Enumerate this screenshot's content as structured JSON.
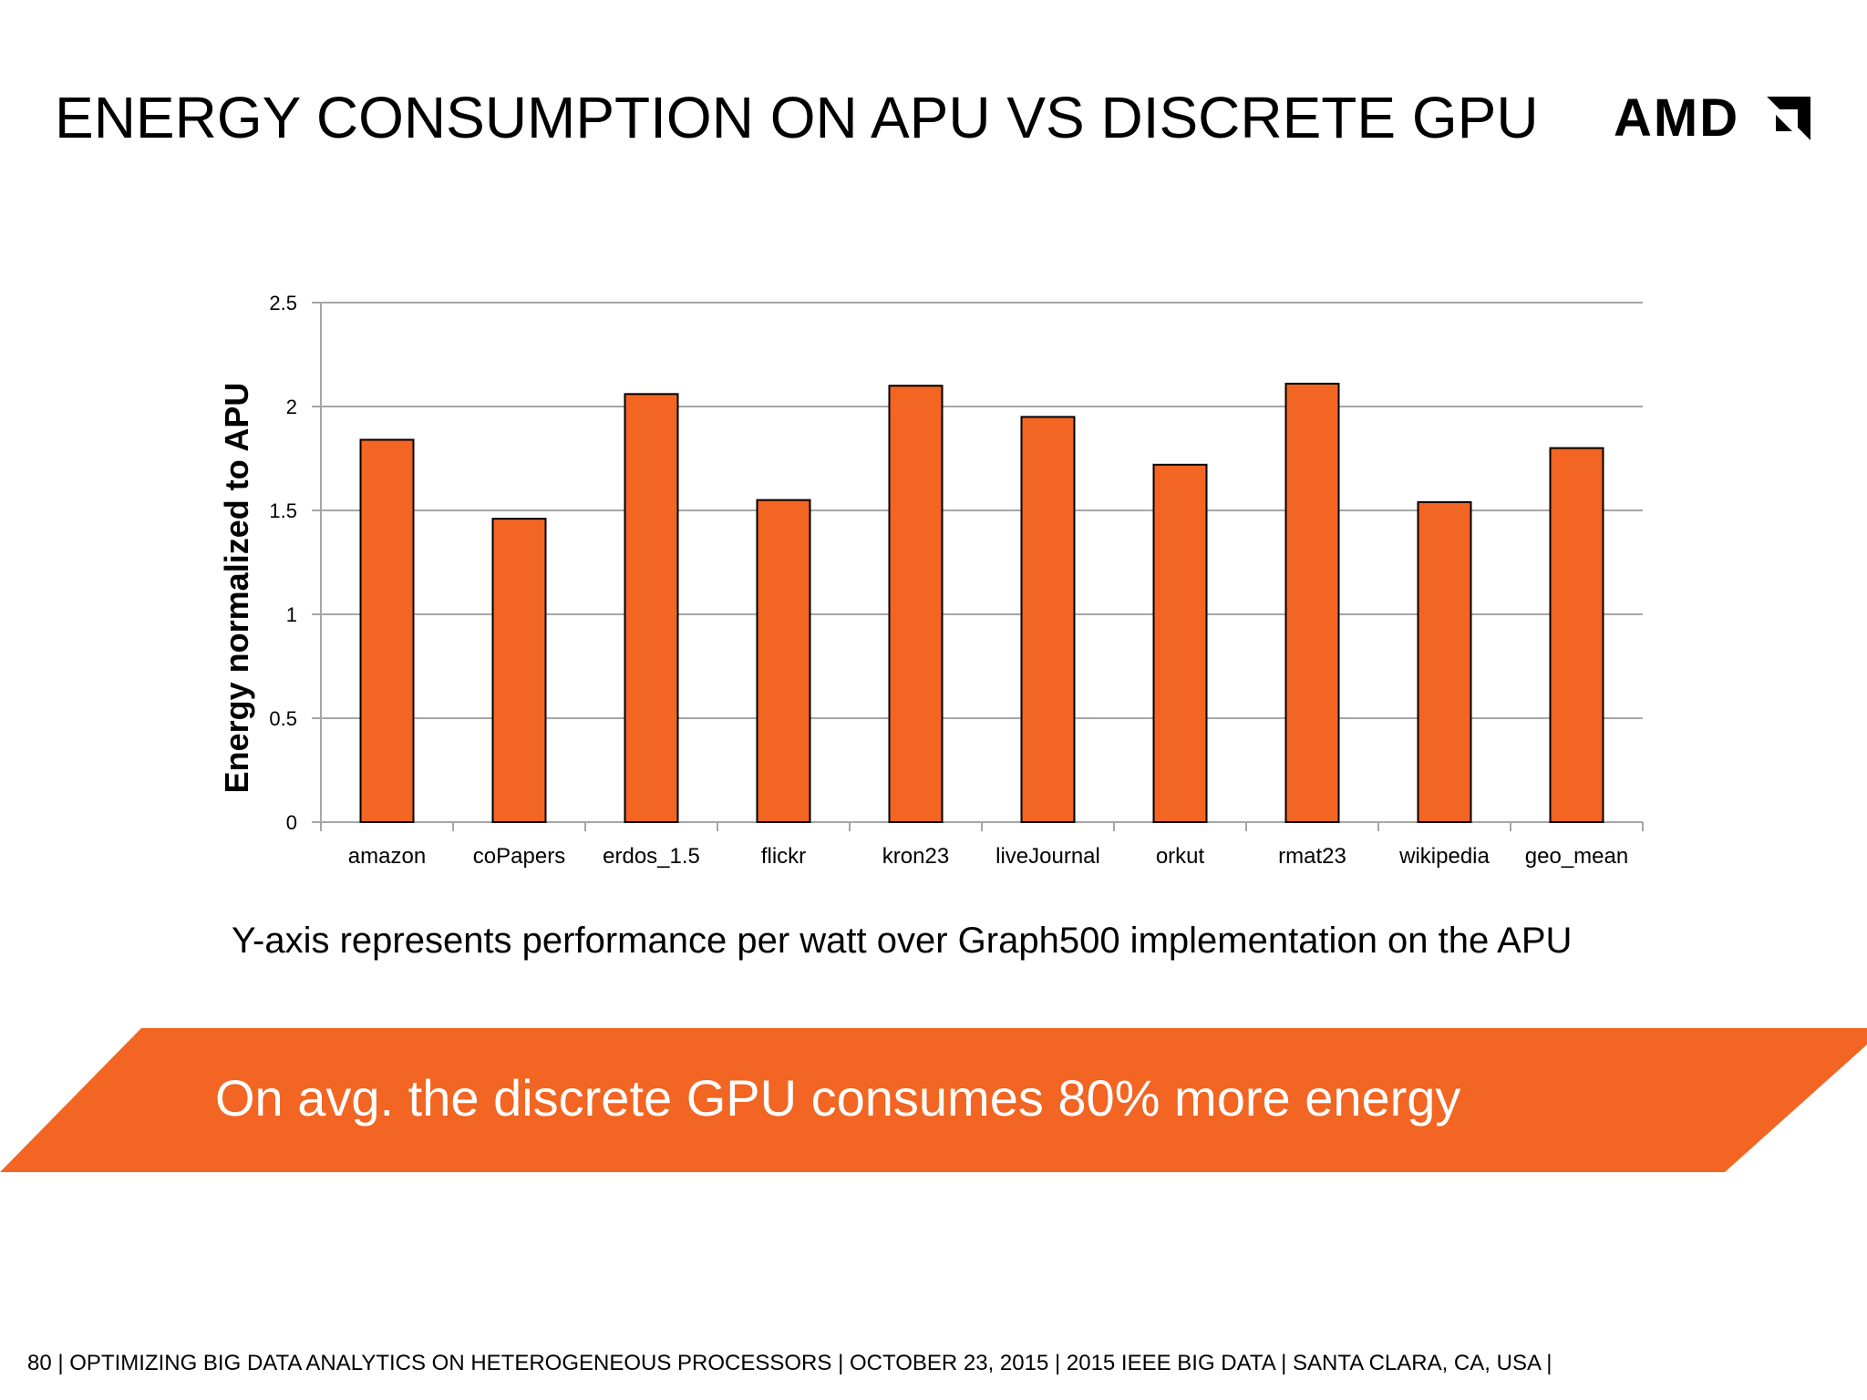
{
  "slide": {
    "title": "ENERGY CONSUMPTION ON APU VS DISCRETE GPU",
    "logo_text": "AMD",
    "subtitle": "Y-axis represents performance per watt over Graph500 implementation on the APU",
    "banner_text": "On avg. the discrete GPU consumes 80% more energy",
    "footer": "80  |  OPTIMIZING BIG DATA ANALYTICS ON HETEROGENEOUS PROCESSORS   |   OCTOBER 23, 2015   |   2015 IEEE BIG DATA   |   SANTA CLARA, CA, USA   |"
  },
  "colors": {
    "bar": "#F26522",
    "banner": "#F26522",
    "grid": "#A6A6A6"
  },
  "chart_data": {
    "type": "bar",
    "title": "",
    "xlabel": "",
    "ylabel": "Energy normalized to APU",
    "categories": [
      "amazon",
      "coPapers",
      "erdos_1.5",
      "flickr",
      "kron23",
      "liveJournal",
      "orkut",
      "rmat23",
      "wikipedia",
      "geo_mean"
    ],
    "values": [
      1.84,
      1.46,
      2.06,
      1.55,
      2.1,
      1.95,
      1.72,
      2.11,
      1.54,
      1.8
    ],
    "ylim": [
      0,
      2.5
    ],
    "yticks": [
      0,
      0.5,
      1,
      1.5,
      2,
      2.5
    ],
    "ytick_labels": [
      "0",
      "0.5",
      "1",
      "1.5",
      "2",
      "2.5"
    ],
    "grid": true,
    "legend": "none"
  }
}
